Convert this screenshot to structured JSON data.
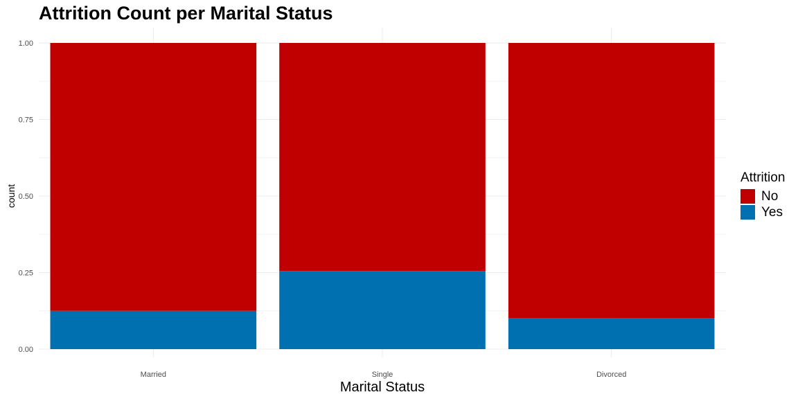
{
  "chart_data": {
    "type": "bar",
    "stacked": true,
    "title": "Attrition Count per Marital Status",
    "xlabel": "Marital Status",
    "ylabel": "count",
    "categories": [
      "Married",
      "Single",
      "Divorced"
    ],
    "series": [
      {
        "name": "No",
        "color": "#c00000",
        "values": [
          0.875,
          0.745,
          0.899
        ]
      },
      {
        "name": "Yes",
        "color": "#0070b0",
        "values": [
          0.125,
          0.255,
          0.101
        ]
      }
    ],
    "ylim": [
      0,
      1
    ],
    "yticks": [
      "0.00",
      "0.25",
      "0.50",
      "0.75",
      "1.00"
    ],
    "grid": true,
    "legend": {
      "title": "Attrition",
      "position": "right"
    }
  }
}
